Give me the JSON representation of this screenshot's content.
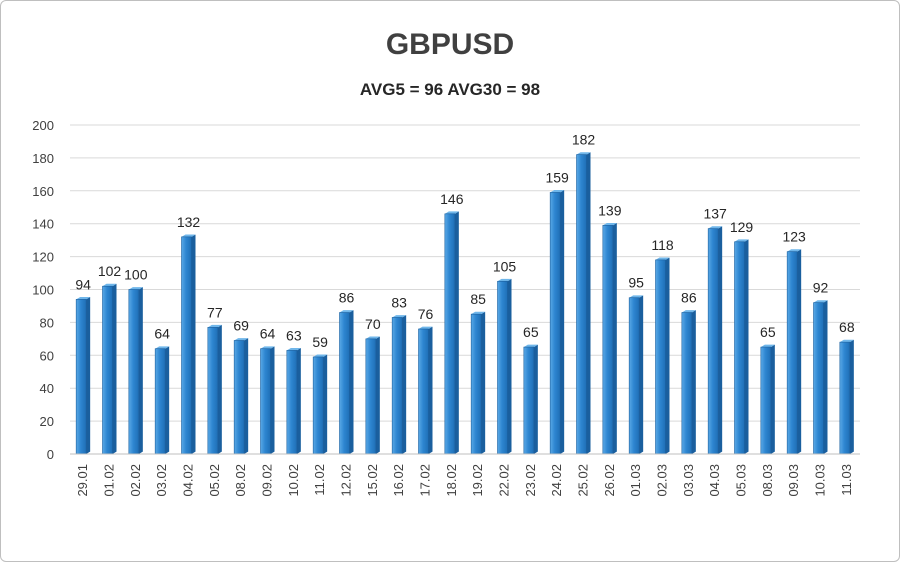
{
  "chart_data": {
    "type": "bar",
    "title": "GBPUSD",
    "subtitle": "AVG5 = 96 AVG30 = 98",
    "categories": [
      "29.01",
      "01.02",
      "02.02",
      "03.02",
      "04.02",
      "05.02",
      "08.02",
      "09.02",
      "10.02",
      "11.02",
      "12.02",
      "15.02",
      "16.02",
      "17.02",
      "18.02",
      "19.02",
      "22.02",
      "23.02",
      "24.02",
      "25.02",
      "26.02",
      "01.03",
      "02.03",
      "03.03",
      "04.03",
      "05.03",
      "08.03",
      "09.03",
      "10.03",
      "11.03"
    ],
    "values": [
      94,
      102,
      100,
      64,
      132,
      77,
      69,
      64,
      63,
      59,
      86,
      70,
      83,
      76,
      146,
      85,
      105,
      65,
      159,
      182,
      139,
      95,
      118,
      86,
      137,
      129,
      65,
      123,
      92,
      68
    ],
    "ylim": [
      0,
      200
    ],
    "yticks": [
      0,
      20,
      40,
      60,
      80,
      100,
      120,
      140,
      160,
      180,
      200
    ],
    "grid": true,
    "legend": "none",
    "colors": {
      "bar": "#2e86d1",
      "bar_light": "#6fb6ea",
      "bar_dark": "#1a5f9e",
      "grid": "#d9d9d9"
    }
  }
}
